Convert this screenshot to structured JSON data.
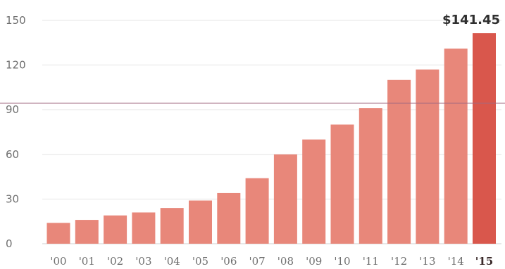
{
  "chart_data": {
    "type": "bar",
    "categories": [
      "'00",
      "'01",
      "'02",
      "'03",
      "'04",
      "'05",
      "'06",
      "'07",
      "'08",
      "'09",
      "'10",
      "'11",
      "'12",
      "'13",
      "'14",
      "'15"
    ],
    "values": [
      14,
      16,
      19,
      21,
      24,
      29,
      34,
      44,
      60,
      70,
      80,
      91,
      110,
      117,
      131,
      141.45
    ],
    "ylim": [
      0,
      150
    ],
    "yticks": [
      "0",
      "30",
      "60",
      "90",
      "120",
      "150"
    ],
    "grid": true,
    "annotation": {
      "category": "'15",
      "text": "$141.45"
    },
    "colors": {
      "bar": "#e8877a",
      "highlight": "#d9574c",
      "grid": "#e4e4e4",
      "reference_line": "#a26a80"
    }
  }
}
